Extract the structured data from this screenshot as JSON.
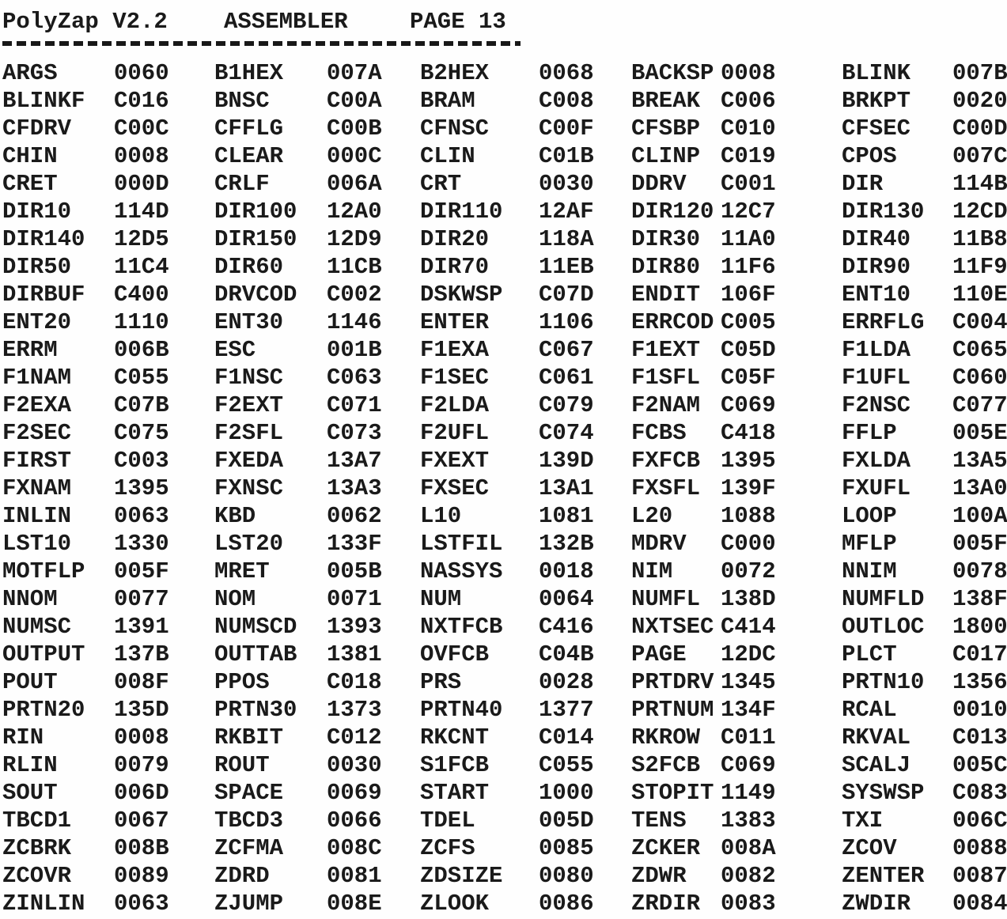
{
  "header": {
    "title": "PolyZap V2.2",
    "listing_type": "ASSEMBLER",
    "page_label": "PAGE 13"
  },
  "symbol_table": {
    "rows": [
      [
        {
          "symbol": "ARGS",
          "address": "0060"
        },
        {
          "symbol": "B1HEX",
          "address": "007A"
        },
        {
          "symbol": "B2HEX",
          "address": "0068"
        },
        {
          "symbol": "BACKSP",
          "address": "0008"
        },
        {
          "symbol": "BLINK",
          "address": "007B"
        }
      ],
      [
        {
          "symbol": "BLINKF",
          "address": "C016"
        },
        {
          "symbol": "BNSC",
          "address": "C00A"
        },
        {
          "symbol": "BRAM",
          "address": "C008"
        },
        {
          "symbol": "BREAK",
          "address": "C006"
        },
        {
          "symbol": "BRKPT",
          "address": "0020"
        }
      ],
      [
        {
          "symbol": "CFDRV",
          "address": "C00C"
        },
        {
          "symbol": "CFFLG",
          "address": "C00B"
        },
        {
          "symbol": "CFNSC",
          "address": "C00F"
        },
        {
          "symbol": "CFSBP",
          "address": "C010"
        },
        {
          "symbol": "CFSEC",
          "address": "C00D"
        }
      ],
      [
        {
          "symbol": "CHIN",
          "address": "0008"
        },
        {
          "symbol": "CLEAR",
          "address": "000C"
        },
        {
          "symbol": "CLIN",
          "address": "C01B"
        },
        {
          "symbol": "CLINP",
          "address": "C019"
        },
        {
          "symbol": "CPOS",
          "address": "007C"
        }
      ],
      [
        {
          "symbol": "CRET",
          "address": "000D"
        },
        {
          "symbol": "CRLF",
          "address": "006A"
        },
        {
          "symbol": "CRT",
          "address": "0030"
        },
        {
          "symbol": "DDRV",
          "address": "C001"
        },
        {
          "symbol": "DIR",
          "address": "114B"
        }
      ],
      [
        {
          "symbol": "DIR10",
          "address": "114D"
        },
        {
          "symbol": "DIR100",
          "address": "12A0"
        },
        {
          "symbol": "DIR110",
          "address": "12AF"
        },
        {
          "symbol": "DIR120",
          "address": "12C7"
        },
        {
          "symbol": "DIR130",
          "address": "12CD"
        }
      ],
      [
        {
          "symbol": "DIR140",
          "address": "12D5"
        },
        {
          "symbol": "DIR150",
          "address": "12D9"
        },
        {
          "symbol": "DIR20",
          "address": "118A"
        },
        {
          "symbol": "DIR30",
          "address": "11A0"
        },
        {
          "symbol": "DIR40",
          "address": "11B8"
        }
      ],
      [
        {
          "symbol": "DIR50",
          "address": "11C4"
        },
        {
          "symbol": "DIR60",
          "address": "11CB"
        },
        {
          "symbol": "DIR70",
          "address": "11EB"
        },
        {
          "symbol": "DIR80",
          "address": "11F6"
        },
        {
          "symbol": "DIR90",
          "address": "11F9"
        }
      ],
      [
        {
          "symbol": "DIRBUF",
          "address": "C400"
        },
        {
          "symbol": "DRVCOD",
          "address": "C002"
        },
        {
          "symbol": "DSKWSP",
          "address": "C07D"
        },
        {
          "symbol": "ENDIT",
          "address": "106F"
        },
        {
          "symbol": "ENT10",
          "address": "110E"
        }
      ],
      [
        {
          "symbol": "ENT20",
          "address": "1110"
        },
        {
          "symbol": "ENT30",
          "address": "1146"
        },
        {
          "symbol": "ENTER",
          "address": "1106"
        },
        {
          "symbol": "ERRCOD",
          "address": "C005"
        },
        {
          "symbol": "ERRFLG",
          "address": "C004"
        }
      ],
      [
        {
          "symbol": "ERRM",
          "address": "006B"
        },
        {
          "symbol": "ESC",
          "address": "001B"
        },
        {
          "symbol": "F1EXA",
          "address": "C067"
        },
        {
          "symbol": "F1EXT",
          "address": "C05D"
        },
        {
          "symbol": "F1LDA",
          "address": "C065"
        }
      ],
      [
        {
          "symbol": "F1NAM",
          "address": "C055"
        },
        {
          "symbol": "F1NSC",
          "address": "C063"
        },
        {
          "symbol": "F1SEC",
          "address": "C061"
        },
        {
          "symbol": "F1SFL",
          "address": "C05F"
        },
        {
          "symbol": "F1UFL",
          "address": "C060"
        }
      ],
      [
        {
          "symbol": "F2EXA",
          "address": "C07B"
        },
        {
          "symbol": "F2EXT",
          "address": "C071"
        },
        {
          "symbol": "F2LDA",
          "address": "C079"
        },
        {
          "symbol": "F2NAM",
          "address": "C069"
        },
        {
          "symbol": "F2NSC",
          "address": "C077"
        }
      ],
      [
        {
          "symbol": "F2SEC",
          "address": "C075"
        },
        {
          "symbol": "F2SFL",
          "address": "C073"
        },
        {
          "symbol": "F2UFL",
          "address": "C074"
        },
        {
          "symbol": "FCBS",
          "address": "C418"
        },
        {
          "symbol": "FFLP",
          "address": "005E"
        }
      ],
      [
        {
          "symbol": "FIRST",
          "address": "C003"
        },
        {
          "symbol": "FXEDA",
          "address": "13A7"
        },
        {
          "symbol": "FXEXT",
          "address": "139D"
        },
        {
          "symbol": "FXFCB",
          "address": "1395"
        },
        {
          "symbol": "FXLDA",
          "address": "13A5"
        }
      ],
      [
        {
          "symbol": "FXNAM",
          "address": "1395"
        },
        {
          "symbol": "FXNSC",
          "address": "13A3"
        },
        {
          "symbol": "FXSEC",
          "address": "13A1"
        },
        {
          "symbol": "FXSFL",
          "address": "139F"
        },
        {
          "symbol": "FXUFL",
          "address": "13A0"
        }
      ],
      [
        {
          "symbol": "INLIN",
          "address": "0063"
        },
        {
          "symbol": "KBD",
          "address": "0062"
        },
        {
          "symbol": "L10",
          "address": "1081"
        },
        {
          "symbol": "L20",
          "address": "1088"
        },
        {
          "symbol": "LOOP",
          "address": "100A"
        }
      ],
      [
        {
          "symbol": "LST10",
          "address": "1330"
        },
        {
          "symbol": "LST20",
          "address": "133F"
        },
        {
          "symbol": "LSTFIL",
          "address": "132B"
        },
        {
          "symbol": "MDRV",
          "address": "C000"
        },
        {
          "symbol": "MFLP",
          "address": "005F"
        }
      ],
      [
        {
          "symbol": "MOTFLP",
          "address": "005F"
        },
        {
          "symbol": "MRET",
          "address": "005B"
        },
        {
          "symbol": "NASSYS",
          "address": "0018"
        },
        {
          "symbol": "NIM",
          "address": "0072"
        },
        {
          "symbol": "NNIM",
          "address": "0078"
        }
      ],
      [
        {
          "symbol": "NNOM",
          "address": "0077"
        },
        {
          "symbol": "NOM",
          "address": "0071"
        },
        {
          "symbol": "NUM",
          "address": "0064"
        },
        {
          "symbol": "NUMFL",
          "address": "138D"
        },
        {
          "symbol": "NUMFLD",
          "address": "138F"
        }
      ],
      [
        {
          "symbol": "NUMSC",
          "address": "1391"
        },
        {
          "symbol": "NUMSCD",
          "address": "1393"
        },
        {
          "symbol": "NXTFCB",
          "address": "C416"
        },
        {
          "symbol": "NXTSEC",
          "address": "C414"
        },
        {
          "symbol": "OUTLOC",
          "address": "1800"
        }
      ],
      [
        {
          "symbol": "OUTPUT",
          "address": "137B"
        },
        {
          "symbol": "OUTTAB",
          "address": "1381"
        },
        {
          "symbol": "OVFCB",
          "address": "C04B"
        },
        {
          "symbol": "PAGE",
          "address": "12DC"
        },
        {
          "symbol": "PLCT",
          "address": "C017"
        }
      ],
      [
        {
          "symbol": "POUT",
          "address": "008F"
        },
        {
          "symbol": "PPOS",
          "address": "C018"
        },
        {
          "symbol": "PRS",
          "address": "0028"
        },
        {
          "symbol": "PRTDRV",
          "address": "1345"
        },
        {
          "symbol": "PRTN10",
          "address": "1356"
        }
      ],
      [
        {
          "symbol": "PRTN20",
          "address": "135D"
        },
        {
          "symbol": "PRTN30",
          "address": "1373"
        },
        {
          "symbol": "PRTN40",
          "address": "1377"
        },
        {
          "symbol": "PRTNUM",
          "address": "134F"
        },
        {
          "symbol": "RCAL",
          "address": "0010"
        }
      ],
      [
        {
          "symbol": "RIN",
          "address": "0008"
        },
        {
          "symbol": "RKBIT",
          "address": "C012"
        },
        {
          "symbol": "RKCNT",
          "address": "C014"
        },
        {
          "symbol": "RKROW",
          "address": "C011"
        },
        {
          "symbol": "RKVAL",
          "address": "C013"
        }
      ],
      [
        {
          "symbol": "RLIN",
          "address": "0079"
        },
        {
          "symbol": "ROUT",
          "address": "0030"
        },
        {
          "symbol": "S1FCB",
          "address": "C055"
        },
        {
          "symbol": "S2FCB",
          "address": "C069"
        },
        {
          "symbol": "SCALJ",
          "address": "005C"
        }
      ],
      [
        {
          "symbol": "SOUT",
          "address": "006D"
        },
        {
          "symbol": "SPACE",
          "address": "0069"
        },
        {
          "symbol": "START",
          "address": "1000"
        },
        {
          "symbol": "STOPIT",
          "address": "1149"
        },
        {
          "symbol": "SYSWSP",
          "address": "C083"
        }
      ],
      [
        {
          "symbol": "TBCD1",
          "address": "0067"
        },
        {
          "symbol": "TBCD3",
          "address": "0066"
        },
        {
          "symbol": "TDEL",
          "address": "005D"
        },
        {
          "symbol": "TENS",
          "address": "1383"
        },
        {
          "symbol": "TXI",
          "address": "006C"
        }
      ],
      [
        {
          "symbol": "ZCBRK",
          "address": "008B"
        },
        {
          "symbol": "ZCFMA",
          "address": "008C"
        },
        {
          "symbol": "ZCFS",
          "address": "0085"
        },
        {
          "symbol": "ZCKER",
          "address": "008A"
        },
        {
          "symbol": "ZCOV",
          "address": "0088"
        }
      ],
      [
        {
          "symbol": "ZCOVR",
          "address": "0089"
        },
        {
          "symbol": "ZDRD",
          "address": "0081"
        },
        {
          "symbol": "ZDSIZE",
          "address": "0080"
        },
        {
          "symbol": "ZDWR",
          "address": "0082"
        },
        {
          "symbol": "ZENTER",
          "address": "0087"
        }
      ],
      [
        {
          "symbol": "ZINLIN",
          "address": "0063"
        },
        {
          "symbol": "ZJUMP",
          "address": "008E"
        },
        {
          "symbol": "ZLOOK",
          "address": "0086"
        },
        {
          "symbol": "ZRDIR",
          "address": "0083"
        },
        {
          "symbol": "ZWDIR",
          "address": "0084"
        }
      ]
    ]
  }
}
